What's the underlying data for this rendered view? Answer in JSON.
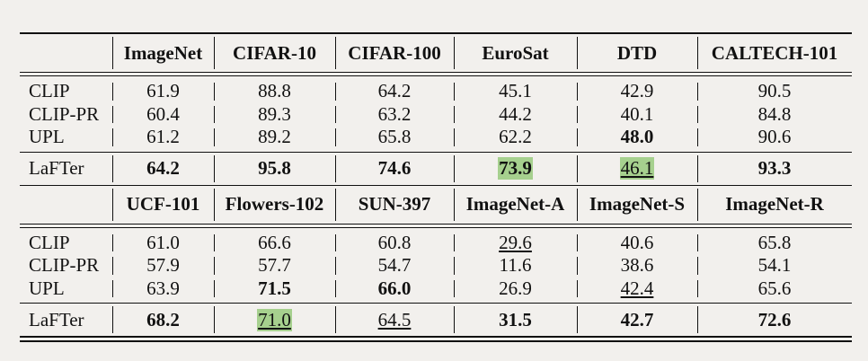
{
  "tables": [
    {
      "headers": [
        "",
        "ImageNet",
        "CIFAR-10",
        "CIFAR-100",
        "EuroSat",
        "DTD",
        "CALTECH-101"
      ],
      "rows": [
        {
          "method": "CLIP",
          "values": [
            "61.9",
            "88.8",
            "64.2",
            "45.1",
            "42.9",
            "90.5"
          ]
        },
        {
          "method": "CLIP-PR",
          "values": [
            "60.4",
            "89.3",
            "63.2",
            "44.2",
            "40.1",
            "84.8"
          ]
        },
        {
          "method": "UPL",
          "values": [
            "61.2",
            "89.2",
            "65.8",
            "62.2",
            "48.0",
            "90.6"
          ]
        }
      ],
      "final": {
        "method": "LaFTer",
        "values": [
          "64.2",
          "95.8",
          "74.6",
          "73.9",
          "46.1",
          "93.3"
        ]
      }
    },
    {
      "headers": [
        "",
        "UCF-101",
        "Flowers-102",
        "SUN-397",
        "ImageNet-A",
        "ImageNet-S",
        "ImageNet-R"
      ],
      "rows": [
        {
          "method": "CLIP",
          "values": [
            "61.0",
            "66.6",
            "60.8",
            "29.6",
            "40.6",
            "65.8"
          ]
        },
        {
          "method": "CLIP-PR",
          "values": [
            "57.9",
            "57.7",
            "54.7",
            "11.6",
            "38.6",
            "54.1"
          ]
        },
        {
          "method": "UPL",
          "values": [
            "63.9",
            "71.5",
            "66.0",
            "26.9",
            "42.4",
            "65.6"
          ]
        }
      ],
      "final": {
        "method": "LaFTer",
        "values": [
          "68.2",
          "71.0",
          "64.5",
          "31.5",
          "42.7",
          "72.6"
        ]
      }
    }
  ],
  "styles": {
    "highlight_color": "#a6d08e"
  }
}
